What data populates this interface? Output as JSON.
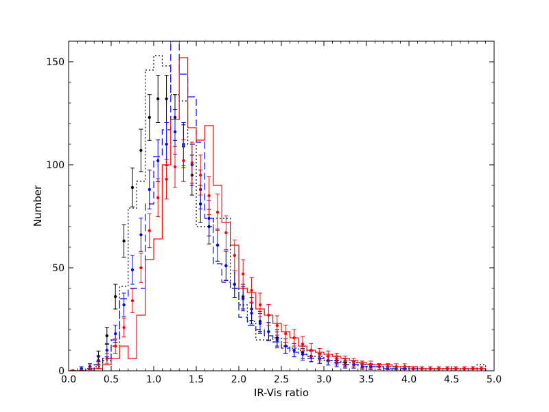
{
  "chart_data": {
    "type": "histogram-with-errorbars",
    "xlabel": "IR-Vis ratio",
    "ylabel": "Number",
    "xlim": [
      0.0,
      5.0
    ],
    "ylim": [
      0,
      160
    ],
    "x_ticks": [
      0.0,
      0.5,
      1.0,
      1.5,
      2.0,
      2.5,
      3.0,
      3.5,
      4.0,
      4.5,
      5.0
    ],
    "x_tick_labels": [
      "0.0",
      "0.5",
      "1.0",
      "1.5",
      "2.0",
      "2.5",
      "3.0",
      "3.5",
      "4.0",
      "4.5",
      "5.0"
    ],
    "y_ticks": [
      0,
      50,
      100,
      150
    ],
    "y_tick_labels": [
      "0",
      "50",
      "100",
      "150"
    ],
    "bin_edges": [
      0.0,
      0.1,
      0.2,
      0.3,
      0.4,
      0.5,
      0.6,
      0.7,
      0.8,
      0.9,
      1.0,
      1.1,
      1.2,
      1.3,
      1.4,
      1.5,
      1.6,
      1.7,
      1.8,
      1.9,
      2.0,
      2.1,
      2.2,
      2.3,
      2.4,
      2.5,
      2.6,
      2.7,
      2.8,
      2.9,
      3.0,
      3.1,
      3.2,
      3.3,
      3.4,
      3.5,
      3.6,
      3.7,
      3.8,
      3.9,
      4.0,
      4.1,
      4.2,
      4.3,
      4.4,
      4.5,
      4.6,
      4.7,
      4.8,
      4.9
    ],
    "histograms": [
      {
        "name": "black dotted",
        "color": "#000000",
        "style": "dotted",
        "values": [
          0,
          0,
          1,
          2,
          5,
          12,
          41,
          79,
          92,
          146,
          153,
          148,
          134,
          131,
          110,
          70,
          70,
          74,
          74,
          40,
          32,
          24,
          15,
          15,
          16,
          12,
          11,
          10,
          7,
          7,
          5,
          5,
          4,
          4,
          3,
          2,
          2,
          2,
          2,
          1,
          1,
          1,
          1,
          1,
          1,
          1,
          1,
          1,
          3
        ]
      },
      {
        "name": "blue dashed",
        "color": "#0000ff",
        "style": "dashed",
        "values": [
          0,
          0,
          1,
          3,
          6,
          15,
          35,
          40,
          40,
          81,
          104,
          117,
          160,
          144,
          133,
          111,
          74,
          52,
          43,
          40,
          26,
          22,
          20,
          17,
          14,
          11,
          9,
          8,
          6,
          6,
          5,
          4,
          3,
          3,
          2,
          2,
          2,
          1,
          1,
          1,
          1,
          1,
          1,
          1,
          1,
          1,
          1,
          1,
          1
        ]
      },
      {
        "name": "red solid",
        "color": "#ff0000",
        "style": "solid",
        "values": [
          0,
          0,
          0,
          1,
          3,
          6,
          12,
          6,
          27,
          54,
          64,
          100,
          122,
          152,
          118,
          112,
          119,
          90,
          72,
          61,
          40,
          38,
          30,
          27,
          23,
          19,
          16,
          12,
          10,
          9,
          8,
          7,
          6,
          5,
          4,
          3,
          3,
          3,
          2,
          2,
          2,
          1,
          1,
          1,
          1,
          1,
          1,
          1,
          1
        ]
      }
    ],
    "points": [
      {
        "name": "black points",
        "color": "#000000",
        "x": [
          0.05,
          0.15,
          0.25,
          0.35,
          0.45,
          0.55,
          0.65,
          0.75,
          0.85,
          0.95,
          1.05,
          1.15,
          1.25,
          1.35,
          1.45,
          1.55,
          1.65,
          1.75,
          1.85,
          1.95,
          2.05,
          2.15,
          2.25,
          2.35,
          2.45,
          2.55,
          2.65,
          2.75,
          2.85,
          2.95,
          3.05,
          3.15,
          3.25,
          3.35,
          3.45,
          3.55,
          3.65,
          3.75,
          3.85,
          3.95,
          4.05,
          4.15,
          4.25,
          4.35,
          4.45,
          4.55,
          4.65,
          4.75,
          4.85
        ],
        "y": [
          0,
          1,
          2,
          7,
          17,
          36,
          63,
          89,
          107,
          123,
          132,
          132,
          123,
          109,
          95,
          81,
          70,
          61,
          51,
          42,
          36,
          30,
          24,
          19,
          16,
          12,
          10,
          9,
          7,
          6,
          5,
          5,
          4,
          3,
          3,
          2,
          2,
          2,
          1,
          1,
          1,
          1,
          1,
          1,
          1,
          1,
          1,
          1,
          1
        ],
        "err": [
          0.3,
          1,
          1.4,
          2.6,
          4.1,
          6,
          7.9,
          9.4,
          10.3,
          11.1,
          11.5,
          11.5,
          11.1,
          10.4,
          9.7,
          9,
          8.4,
          7.8,
          7.1,
          6.5,
          6,
          5.5,
          4.9,
          4.4,
          4,
          3.5,
          3.2,
          3,
          2.6,
          2.4,
          2.2,
          2.2,
          2,
          1.7,
          1.7,
          1.4,
          1.4,
          1.4,
          1,
          1,
          1,
          1,
          1,
          1,
          1,
          1,
          1,
          1,
          1
        ]
      },
      {
        "name": "blue points",
        "color": "#0000ff",
        "x": [
          0.05,
          0.15,
          0.25,
          0.35,
          0.45,
          0.55,
          0.65,
          0.75,
          0.85,
          0.95,
          1.05,
          1.15,
          1.25,
          1.35,
          1.45,
          1.55,
          1.65,
          1.75,
          1.85,
          1.95,
          2.05,
          2.15,
          2.25,
          2.35,
          2.45,
          2.55,
          2.65,
          2.75,
          2.85,
          2.95,
          3.05,
          3.15,
          3.25,
          3.35,
          3.45,
          3.55,
          3.65,
          3.75,
          3.85,
          3.95,
          4.05,
          4.15,
          4.25,
          4.35,
          4.45,
          4.55,
          4.65,
          4.75,
          4.85
        ],
        "y": [
          0,
          1,
          2,
          5,
          10,
          18,
          32,
          49,
          66,
          88,
          102,
          110,
          116,
          110,
          100,
          88,
          74,
          61,
          51,
          42,
          35,
          28,
          23,
          19,
          15,
          12,
          10,
          8,
          7,
          6,
          5,
          4,
          3,
          3,
          2,
          2,
          2,
          1,
          1,
          1,
          1,
          1,
          1,
          1,
          1,
          1,
          1,
          1,
          1
        ],
        "err": [
          0.3,
          1,
          1.4,
          2.2,
          3.2,
          4.2,
          5.7,
          7,
          8.1,
          9.4,
          10.1,
          10.5,
          10.8,
          10.5,
          10,
          9.4,
          8.6,
          7.8,
          7.1,
          6.5,
          5.9,
          5.3,
          4.8,
          4.4,
          3.9,
          3.5,
          3.2,
          2.8,
          2.6,
          2.4,
          2.2,
          2,
          1.7,
          1.7,
          1.4,
          1.4,
          1.4,
          1,
          1,
          1,
          1,
          1,
          1,
          1,
          1,
          1,
          1,
          1,
          1
        ]
      },
      {
        "name": "red points",
        "color": "#ff0000",
        "x": [
          0.05,
          0.15,
          0.25,
          0.35,
          0.45,
          0.55,
          0.65,
          0.75,
          0.85,
          0.95,
          1.05,
          1.15,
          1.25,
          1.35,
          1.45,
          1.55,
          1.65,
          1.75,
          1.85,
          1.95,
          2.05,
          2.15,
          2.25,
          2.35,
          2.45,
          2.55,
          2.65,
          2.75,
          2.85,
          2.95,
          3.05,
          3.15,
          3.25,
          3.35,
          3.45,
          3.55,
          3.65,
          3.75,
          3.85,
          3.95,
          4.05,
          4.15,
          4.25,
          4.35,
          4.45,
          4.55,
          4.65,
          4.75,
          4.85
        ],
        "y": [
          0,
          0,
          1,
          3,
          6,
          12,
          21,
          34,
          50,
          68,
          84,
          93,
          99,
          102,
          101,
          95,
          85,
          77,
          67,
          56,
          47,
          39,
          32,
          27,
          22,
          18,
          16,
          13,
          10,
          8,
          7,
          6,
          5,
          4,
          3,
          3,
          2,
          2,
          2,
          2,
          1,
          1,
          1,
          1,
          1,
          1,
          1,
          1,
          1
        ],
        "err": [
          0.3,
          0.3,
          1,
          1.7,
          2.4,
          3.5,
          4.6,
          5.8,
          7.1,
          8.2,
          9.2,
          9.6,
          9.9,
          10.1,
          10,
          9.7,
          9.2,
          8.8,
          8.2,
          7.5,
          6.9,
          6.2,
          5.7,
          5.2,
          4.7,
          4.2,
          4,
          3.6,
          3.2,
          2.8,
          2.6,
          2.4,
          2.2,
          2,
          1.7,
          1.7,
          1.4,
          1.4,
          1.4,
          1.4,
          1,
          1,
          1,
          1,
          1,
          1,
          1,
          1,
          1
        ]
      }
    ]
  }
}
